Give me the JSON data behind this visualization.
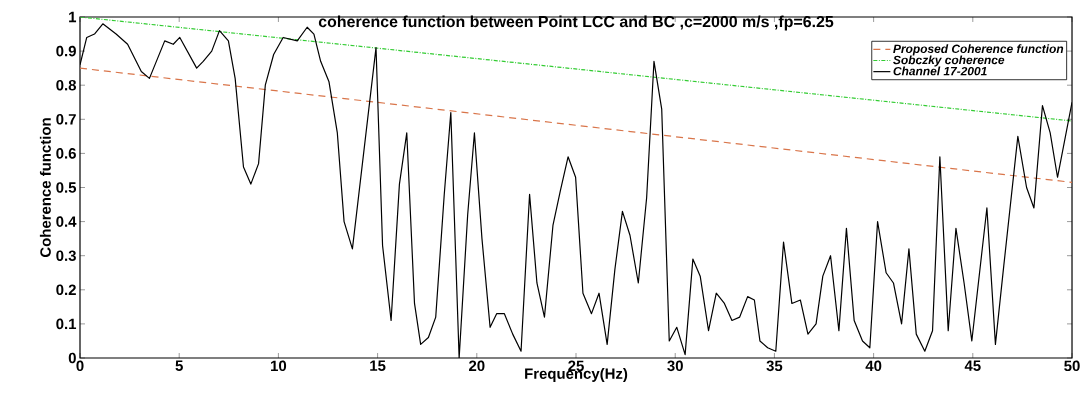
{
  "chart_data": {
    "type": "line",
    "title": "coherence function between Point LCC and BC ,c=2000 m/s ,fp=6.25",
    "xlabel": "Frequency(Hz)",
    "ylabel": "Coherence function",
    "xlim": [
      0,
      50
    ],
    "ylim": [
      0,
      1
    ],
    "xticks": [
      0,
      5,
      10,
      15,
      20,
      25,
      30,
      35,
      40,
      45,
      50
    ],
    "yticks": [
      0,
      0.1,
      0.2,
      0.3,
      0.4,
      0.5,
      0.6,
      0.7,
      0.8,
      0.9,
      1
    ],
    "grid": false,
    "legend": "top right",
    "series": [
      {
        "name": "Proposed Coherence function",
        "color": "#d9754a",
        "line_style": "dashed",
        "x": [
          0,
          50
        ],
        "values": [
          0.85,
          0.515
        ]
      },
      {
        "name": "Sobczky coherence",
        "color": "#33cc33",
        "line_style": "dotted",
        "x": [
          0,
          50
        ],
        "values": [
          1.0,
          0.695
        ]
      },
      {
        "name": "Channel 17-2001",
        "color": "#000000",
        "line_style": "solid",
        "x": [
          0,
          0.34,
          0.73,
          1.15,
          1.82,
          2.4,
          3.09,
          3.5,
          4.27,
          4.7,
          5.03,
          5.88,
          6.21,
          6.64,
          7.03,
          7.48,
          7.82,
          8.24,
          8.61,
          9.0,
          9.34,
          9.76,
          10.24,
          10.95,
          11.45,
          11.79,
          12.13,
          12.55,
          12.97,
          13.31,
          13.73,
          14.92,
          15.25,
          15.68,
          16.1,
          16.47,
          16.86,
          17.17,
          17.56,
          17.93,
          18.36,
          18.69,
          19.11,
          19.54,
          19.88,
          20.26,
          20.67,
          21.0,
          21.39,
          21.81,
          22.23,
          22.66,
          23.03,
          23.41,
          23.84,
          24.21,
          24.6,
          24.98,
          25.35,
          25.78,
          26.16,
          26.57,
          26.96,
          27.34,
          27.72,
          28.14,
          28.56,
          28.93,
          29.32,
          29.7,
          30.08,
          30.5,
          30.89,
          31.26,
          31.68,
          32.07,
          32.48,
          32.86,
          33.25,
          33.65,
          33.99,
          34.27,
          34.66,
          35.07,
          35.46,
          35.88,
          36.31,
          36.69,
          37.1,
          37.44,
          37.83,
          38.25,
          38.63,
          39.02,
          39.44,
          39.81,
          40.2,
          40.63,
          41.0,
          41.41,
          41.78,
          42.15,
          42.58,
          42.97,
          43.34,
          43.76,
          44.15,
          44.56,
          44.95,
          45.71,
          46.14,
          46.56,
          47.27,
          47.71,
          48.08,
          48.51,
          48.9,
          49.27,
          50
        ],
        "values": [
          0.86,
          0.94,
          0.95,
          0.98,
          0.95,
          0.92,
          0.84,
          0.82,
          0.93,
          0.92,
          0.94,
          0.85,
          0.87,
          0.9,
          0.96,
          0.93,
          0.82,
          0.56,
          0.51,
          0.57,
          0.8,
          0.89,
          0.94,
          0.93,
          0.97,
          0.95,
          0.87,
          0.81,
          0.66,
          0.4,
          0.32,
          0.91,
          0.33,
          0.11,
          0.51,
          0.66,
          0.16,
          0.04,
          0.06,
          0.12,
          0.48,
          0.72,
          0.0,
          0.42,
          0.66,
          0.35,
          0.09,
          0.13,
          0.13,
          0.07,
          0.02,
          0.48,
          0.22,
          0.12,
          0.39,
          0.49,
          0.59,
          0.53,
          0.19,
          0.13,
          0.19,
          0.04,
          0.26,
          0.43,
          0.36,
          0.22,
          0.47,
          0.87,
          0.73,
          0.05,
          0.09,
          0.01,
          0.29,
          0.24,
          0.08,
          0.19,
          0.16,
          0.11,
          0.12,
          0.18,
          0.17,
          0.05,
          0.03,
          0.02,
          0.34,
          0.16,
          0.17,
          0.07,
          0.1,
          0.24,
          0.3,
          0.08,
          0.38,
          0.11,
          0.05,
          0.03,
          0.4,
          0.25,
          0.22,
          0.1,
          0.32,
          0.07,
          0.02,
          0.08,
          0.59,
          0.08,
          0.38,
          0.22,
          0.05,
          0.44,
          0.04,
          0.27,
          0.65,
          0.5,
          0.44,
          0.74,
          0.66,
          0.53,
          0.75
        ]
      }
    ]
  }
}
